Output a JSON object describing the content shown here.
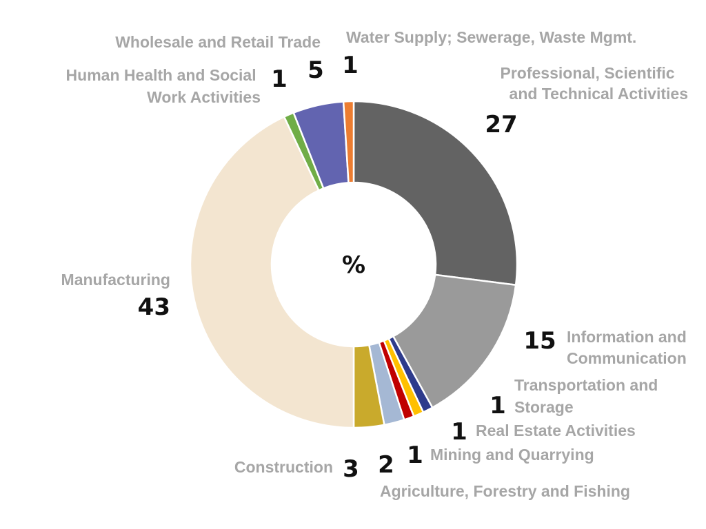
{
  "chart_data": {
    "type": "pie",
    "center_label": "%",
    "slices": [
      {
        "label": "Professional, Scientific and Technical Activities",
        "value": 27,
        "value_label": "27",
        "color": "#636363"
      },
      {
        "label": "Information and Communication",
        "value": 15,
        "value_label": "15",
        "color": "#9a9a9a"
      },
      {
        "label": "Transportation and Storage",
        "value": 1,
        "value_label": "1",
        "color": "#2e3b8c"
      },
      {
        "label": "Real Estate Activities",
        "value": 1,
        "value_label": "1",
        "color": "#ffc000"
      },
      {
        "label": "Mining and Quarrying",
        "value": 1,
        "value_label": "1",
        "color": "#c00000"
      },
      {
        "label": "Agriculture, Forestry and Fishing",
        "value": 2,
        "value_label": "2",
        "color": "#a5b8d4"
      },
      {
        "label": "Construction",
        "value": 3,
        "value_label": "3",
        "color": "#c9aa2c"
      },
      {
        "label": "Manufacturing",
        "value": 43,
        "value_label": "43",
        "color": "#f3e5d0"
      },
      {
        "label": "Human Health and Social Work Activities",
        "value": 1,
        "value_label": "1",
        "color": "#70ad47"
      },
      {
        "label": "Wholesale and Retail Trade",
        "value": 5,
        "value_label": "5",
        "color": "#6264b0"
      },
      {
        "label": "Water Supply; Sewerage, Waste Mgmt.",
        "value": 1,
        "value_label": "1",
        "color": "#ed7d31"
      }
    ]
  }
}
